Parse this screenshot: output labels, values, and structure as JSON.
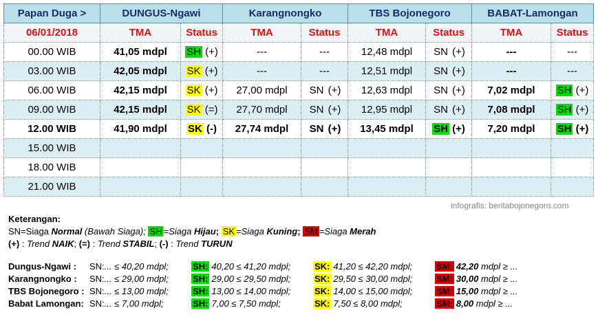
{
  "table": {
    "header": [
      "Papan Duga >",
      "DUNGUS-Ngawi",
      "Karangnongko",
      "TBS Bojonegoro",
      "BABAT-Lamongan"
    ],
    "date": "06/01/2018",
    "subheader": [
      "TMA",
      "Status"
    ],
    "rows": [
      {
        "time": "00.00 WIB",
        "cells": [
          "41,05 mdpl",
          {
            "code": "SH",
            "trend": "(+)"
          },
          "---",
          "---",
          "12,48 mdpl",
          {
            "code": "SN",
            "trend": "(+)"
          },
          "---",
          "---"
        ]
      },
      {
        "time": "03.00 WIB",
        "cells": [
          "42,05 mdpl",
          {
            "code": "SK",
            "trend": "(+)"
          },
          "---",
          "---",
          "12,51 mdpl",
          {
            "code": "SN",
            "trend": "(+)"
          },
          "---",
          "---"
        ]
      },
      {
        "time": "06.00 WIB",
        "cells": [
          "42,15 mdpl",
          {
            "code": "SK",
            "trend": "(+)"
          },
          "27,00 mdpl",
          {
            "code": "SN",
            "trend": "(+)"
          },
          "12,63 mdpl",
          {
            "code": "SN",
            "trend": "(+)"
          },
          "7,02 mdpl",
          {
            "code": "SH",
            "trend": "(+)"
          }
        ]
      },
      {
        "time": "09.00 WIB",
        "cells": [
          "42,15 mdpl",
          {
            "code": "SK",
            "trend": "(=)"
          },
          "27,70 mdpl",
          {
            "code": "SN",
            "trend": "(+)"
          },
          "12,95 mdpl",
          {
            "code": "SN",
            "trend": "(+)"
          },
          "7,08 mdpl",
          {
            "code": "SH",
            "trend": "(+)"
          }
        ]
      },
      {
        "time": "12.00 WIB",
        "cells": [
          "41,90 mdpl",
          {
            "code": "SK",
            "trend": "(-)"
          },
          "27,74 mdpl",
          {
            "code": "SN",
            "trend": "(+)"
          },
          "13,45 mdpl",
          {
            "code": "SH",
            "trend": "(+)"
          },
          "7,20 mdpl",
          {
            "code": "SH",
            "trend": "(+)"
          }
        ]
      },
      {
        "time": "15.00 WIB",
        "cells": []
      },
      {
        "time": "18.00 WIB",
        "cells": []
      },
      {
        "time": "21.00 WIB",
        "cells": []
      }
    ]
  },
  "status_colors": {
    "SH": "#00dd00",
    "SK": "#ffff00",
    "SM": "#dd0000"
  },
  "credit": "infografis: beritabojonegoro.com",
  "legend": {
    "heading": "Keterangan:",
    "line1": [
      "SN=Siaga ",
      "Normal",
      " (Bawah Siaga); ",
      "SH",
      "=Siaga ",
      "Hijau",
      "; ",
      "SK",
      "=Siaga ",
      "Kuning",
      "; ",
      "SM",
      "=Siaga ",
      "Merah"
    ],
    "line2": [
      "(+)",
      " : ",
      "Trend ",
      "NAIK",
      "; ",
      "(=)",
      " : ",
      "Trend ",
      "STABIL",
      "; ",
      "(-)",
      " : ",
      "Trend ",
      "TURUN"
    ]
  },
  "thresholds": {
    "codes": [
      "SN:",
      "SH:",
      "SK:",
      "SM:"
    ],
    "rows": [
      {
        "name": "Dungus-Ngawi :",
        "ranges": [
          "... ≤ 40,20 mdpl;",
          "40,20 ≤ 41,20 mdpl;",
          "41,20 ≤ 42,20 mdpl;"
        ],
        "sm": [
          "42,20",
          " mdpl ≥ ..."
        ]
      },
      {
        "name": "Karangnongko :",
        "ranges": [
          "... ≤ 29,00 mdpl;",
          "29,00 ≤ 29,50 mdpl;",
          "29,50 ≤ 30,00 mdpl;"
        ],
        "sm": [
          "30,00",
          " mdpl ≥ ..."
        ]
      },
      {
        "name": "TBS Bojonegoro :",
        "ranges": [
          "... ≤ 13,00 mdpl;",
          "13,00 ≤ 14,00 mdpl;",
          "14,00 ≤ 15,00 mdpl;"
        ],
        "sm": [
          "15,00",
          " mdpl ≥ ..."
        ]
      },
      {
        "name": "Babat Lamongan:",
        "ranges": [
          "... ≤ 7,00 mdpl;",
          "7,00 ≤ 7,50 mdpl;",
          "7,50 ≤ 8,00 mdpl;"
        ],
        "sm": [
          "8,00",
          " mdpl ≥ ..."
        ]
      }
    ]
  }
}
